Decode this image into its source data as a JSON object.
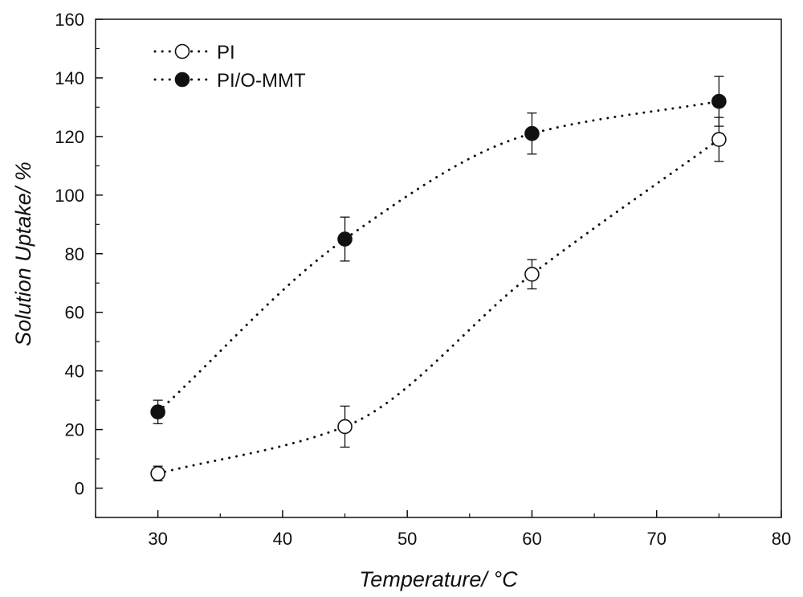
{
  "chart_data": {
    "type": "scatter",
    "title": "",
    "xlabel": "Temperature/ °C",
    "ylabel": "Solution Uptake/ %",
    "xlim": [
      25,
      80
    ],
    "ylim": [
      -10,
      160
    ],
    "xticks": [
      30,
      40,
      50,
      60,
      70,
      80
    ],
    "yticks": [
      0,
      20,
      40,
      60,
      80,
      100,
      120,
      140,
      160
    ],
    "grid": false,
    "legend_position": "top-left",
    "series": [
      {
        "name": "PI",
        "marker": "open-circle",
        "line": "dotted",
        "color": "#111111",
        "x": [
          30,
          45,
          60,
          75
        ],
        "y": [
          5,
          21,
          73,
          119
        ],
        "error": [
          2.5,
          7,
          5,
          7.5
        ]
      },
      {
        "name": "PI/O-MMT",
        "marker": "filled-circle",
        "line": "dotted",
        "color": "#111111",
        "x": [
          30,
          45,
          60,
          75
        ],
        "y": [
          26,
          85,
          121,
          132
        ],
        "error": [
          4,
          7.5,
          7,
          8.5
        ]
      }
    ]
  }
}
